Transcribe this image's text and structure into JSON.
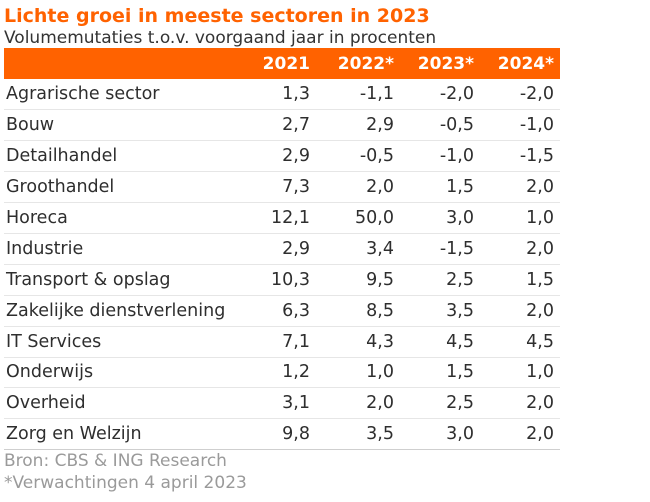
{
  "chart_data": {
    "type": "table",
    "title": "Lichte groei in meeste sectoren in 2023",
    "subtitle": "Volumemutaties t.o.v. voorgaand jaar in procenten",
    "columns": [
      "",
      "2021",
      "2022*",
      "2023*",
      "2024*"
    ],
    "rows": [
      {
        "label": "Agrarische sector",
        "values": [
          "1,3",
          "-1,1",
          "-2,0",
          "-2,0"
        ]
      },
      {
        "label": "Bouw",
        "values": [
          "2,7",
          "2,9",
          "-0,5",
          "-1,0"
        ]
      },
      {
        "label": "Detailhandel",
        "values": [
          "2,9",
          "-0,5",
          "-1,0",
          "-1,5"
        ]
      },
      {
        "label": "Groothandel",
        "values": [
          "7,3",
          "2,0",
          "1,5",
          "2,0"
        ]
      },
      {
        "label": "Horeca",
        "values": [
          "12,1",
          "50,0",
          "3,0",
          "1,0"
        ]
      },
      {
        "label": "Industrie",
        "values": [
          "2,9",
          "3,4",
          "-1,5",
          "2,0"
        ]
      },
      {
        "label": "Transport & opslag",
        "values": [
          "10,3",
          "9,5",
          "2,5",
          "1,5"
        ]
      },
      {
        "label": "Zakelijke dienstverlening",
        "values": [
          "6,3",
          "8,5",
          "3,5",
          "2,0"
        ]
      },
      {
        "label": "IT Services",
        "values": [
          "7,1",
          "4,3",
          "4,5",
          "4,5"
        ]
      },
      {
        "label": "Onderwijs",
        "values": [
          "1,2",
          "1,0",
          "1,5",
          "1,0"
        ]
      },
      {
        "label": "Overheid",
        "values": [
          "3,1",
          "2,0",
          "2,5",
          "2,0"
        ]
      },
      {
        "label": "Zorg en Welzijn",
        "values": [
          "9,8",
          "3,5",
          "3,0",
          "2,0"
        ]
      }
    ],
    "source": "Bron: CBS & ING Research",
    "note": "*Verwachtingen 4 april 2023",
    "colors": {
      "accent": "#ff6200",
      "header_text": "#ffffff",
      "body_text": "#2e2e2e",
      "footer_text": "#9a9a9a"
    }
  }
}
